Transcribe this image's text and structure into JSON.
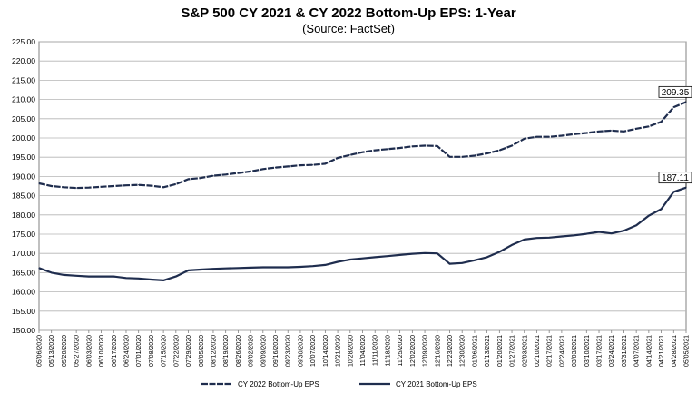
{
  "chart_data": {
    "type": "line",
    "title": "S&P 500 CY 2021 & CY 2022 Bottom-Up EPS: 1-Year",
    "subtitle": "(Source: FactSet)",
    "ylim": [
      150,
      225
    ],
    "yticks": [
      "150.00",
      "155.00",
      "160.00",
      "165.00",
      "170.00",
      "175.00",
      "180.00",
      "185.00",
      "190.00",
      "195.00",
      "200.00",
      "205.00",
      "210.00",
      "215.00",
      "220.00",
      "225.00"
    ],
    "xticks": [
      "05/06/2020",
      "05/13/2020",
      "05/20/2020",
      "05/27/2020",
      "06/03/2020",
      "06/10/2020",
      "06/17/2020",
      "06/24/2020",
      "07/01/2020",
      "07/08/2020",
      "07/15/2020",
      "07/22/2020",
      "07/29/2020",
      "08/05/2020",
      "08/12/2020",
      "08/19/2020",
      "08/26/2020",
      "09/02/2020",
      "09/09/2020",
      "09/16/2020",
      "09/23/2020",
      "09/30/2020",
      "10/07/2020",
      "10/14/2020",
      "10/21/2020",
      "10/28/2020",
      "11/04/2020",
      "11/11/2020",
      "11/18/2020",
      "11/25/2020",
      "12/02/2020",
      "12/09/2020",
      "12/16/2020",
      "12/23/2020",
      "12/30/2020",
      "01/06/2021",
      "01/13/2021",
      "01/20/2021",
      "01/27/2021",
      "02/03/2021",
      "02/10/2021",
      "02/17/2021",
      "02/24/2021",
      "03/03/2021",
      "03/10/2021",
      "03/17/2021",
      "03/24/2021",
      "03/31/2021",
      "04/07/2021",
      "04/14/2021",
      "04/21/2021",
      "04/28/2021",
      "05/05/2021"
    ],
    "grid": true,
    "legend_position": "bottom",
    "series": [
      {
        "name": "CY 2022 Bottom-Up EPS",
        "style": "dashed",
        "color": "#1f2d4e",
        "end_label": "209.35",
        "x": [
          0,
          1,
          2,
          3,
          4,
          5,
          6,
          7,
          8,
          9,
          10,
          11,
          12,
          13,
          14,
          15,
          16,
          17,
          18,
          19,
          20,
          21,
          22,
          23,
          24,
          25,
          26,
          27,
          28,
          29,
          30,
          31,
          32,
          33,
          34,
          35,
          36,
          37,
          38,
          39,
          40,
          41,
          42,
          43,
          44,
          45,
          46,
          47,
          48,
          49,
          50,
          51,
          52
        ],
        "values": [
          188.2,
          187.5,
          187.2,
          187.0,
          187.1,
          187.3,
          187.5,
          187.7,
          187.8,
          187.6,
          187.2,
          188.0,
          189.3,
          189.6,
          190.2,
          190.5,
          190.9,
          191.3,
          191.9,
          192.3,
          192.6,
          192.9,
          193.0,
          193.3,
          194.8,
          195.6,
          196.3,
          196.8,
          197.1,
          197.4,
          197.8,
          198.0,
          197.9,
          195.1,
          195.1,
          195.4,
          196.0,
          196.8,
          198.0,
          199.8,
          200.3,
          200.3,
          200.6,
          201.0,
          201.3,
          201.7,
          201.9,
          201.7,
          202.4,
          203.0,
          204.2,
          208.0,
          209.35
        ]
      },
      {
        "name": "CY 2021 Bottom-Up EPS",
        "style": "solid",
        "color": "#1f2d4e",
        "end_label": "187.11",
        "x": [
          0,
          1,
          2,
          3,
          4,
          5,
          6,
          7,
          8,
          9,
          10,
          11,
          12,
          13,
          14,
          15,
          16,
          17,
          18,
          19,
          20,
          21,
          22,
          23,
          24,
          25,
          26,
          27,
          28,
          29,
          30,
          31,
          32,
          33,
          34,
          35,
          36,
          37,
          38,
          39,
          40,
          41,
          42,
          43,
          44,
          45,
          46,
          47,
          48,
          49,
          50,
          51,
          52
        ],
        "values": [
          166.2,
          165.0,
          164.4,
          164.2,
          164.0,
          164.0,
          164.0,
          163.6,
          163.5,
          163.2,
          163.0,
          164.0,
          165.6,
          165.8,
          166.0,
          166.1,
          166.2,
          166.3,
          166.4,
          166.4,
          166.4,
          166.5,
          166.7,
          167.0,
          167.8,
          168.4,
          168.7,
          169.0,
          169.3,
          169.6,
          169.9,
          170.1,
          170.0,
          167.3,
          167.5,
          168.2,
          169.0,
          170.4,
          172.2,
          173.6,
          174.0,
          174.1,
          174.4,
          174.7,
          175.1,
          175.6,
          175.2,
          175.9,
          177.3,
          179.8,
          181.5,
          186.0,
          187.11
        ]
      }
    ]
  }
}
